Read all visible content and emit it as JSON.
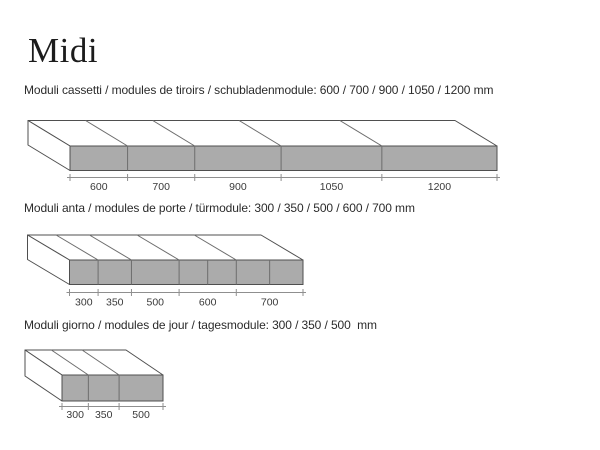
{
  "page": {
    "title": "Midi"
  },
  "sections": [
    {
      "id": "drawer-modules",
      "heading": "Moduli cassetti / modules de tiroirs / schubladenmodule: 600 / 700 / 900 / 1050 / 1200 mm",
      "modules_mm": [
        600,
        700,
        900,
        1050,
        1200
      ],
      "dim_labels": [
        "600",
        "700",
        "900",
        "1050",
        "1200"
      ],
      "door_split_indices": []
    },
    {
      "id": "door-modules",
      "heading": "Moduli anta / modules de porte / türmodule: 300 / 350 / 500 / 600 / 700 mm",
      "modules_mm": [
        300,
        350,
        500,
        600,
        700
      ],
      "dim_labels": [
        "300",
        "350",
        "500",
        "600",
        "700"
      ],
      "door_split_indices": [
        3,
        4
      ]
    },
    {
      "id": "open-modules",
      "heading": "Moduli giorno / modules de jour / tagesmodule: 300 / 350 / 500  mm",
      "modules_mm": [
        300,
        350,
        500
      ],
      "dim_labels": [
        "300",
        "350",
        "500"
      ],
      "door_split_indices": []
    }
  ],
  "colors": {
    "front_fill": "#ababab",
    "face_fill": "#ffffff",
    "outline": "#4f4f4f",
    "divider": "#6d6d6d",
    "dim_line": "#8f8f8f",
    "dim_text": "#3a3a3a"
  }
}
